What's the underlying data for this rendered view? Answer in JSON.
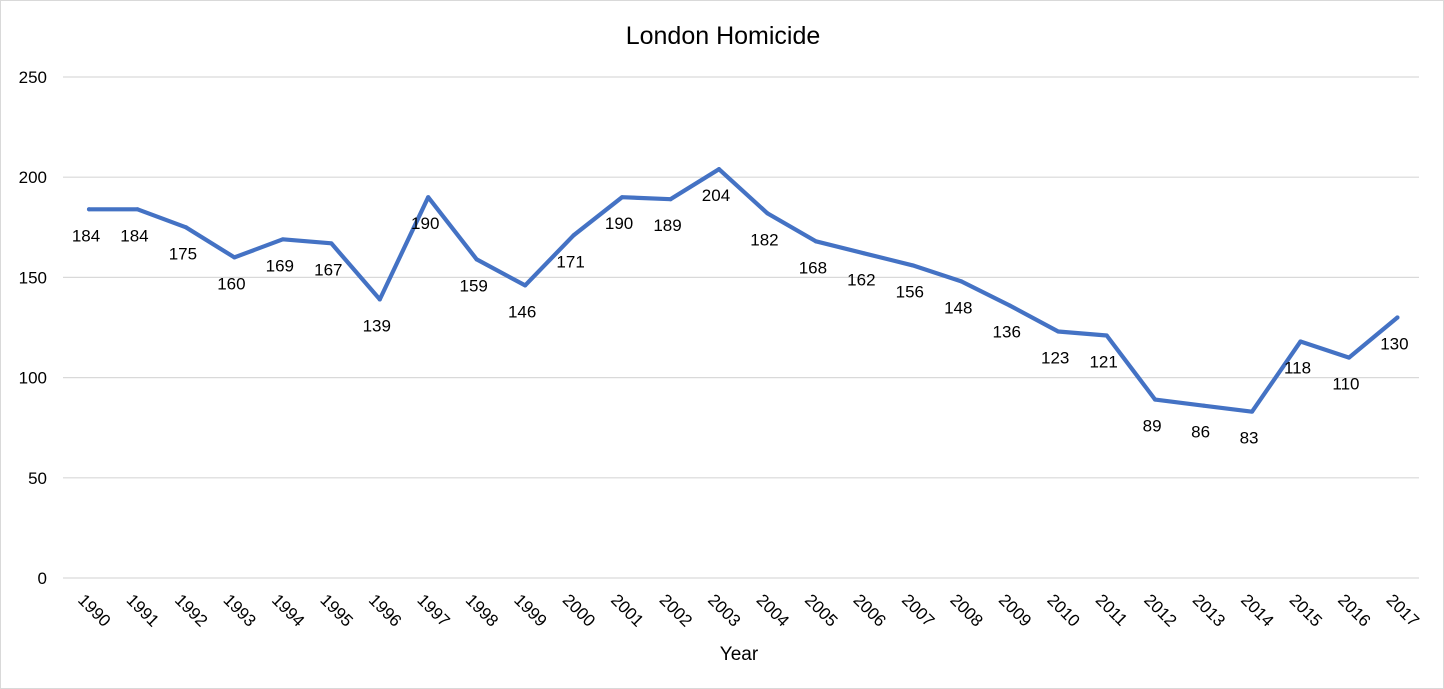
{
  "chart_data": {
    "type": "line",
    "title": "London Homicide",
    "xlabel": "Year",
    "ylabel": "",
    "ylim": [
      0,
      250
    ],
    "yticks": [
      0,
      50,
      100,
      150,
      200,
      250
    ],
    "grid": true,
    "legend": "none",
    "line_color": "#4472C4",
    "grid_color": "#d9d9d9",
    "categories": [
      "1990",
      "1991",
      "1992",
      "1993",
      "1994",
      "1995",
      "1996",
      "1997",
      "1998",
      "1999",
      "2000",
      "2001",
      "2002",
      "2003",
      "2004",
      "2005",
      "2006",
      "2007",
      "2008",
      "2009",
      "2010",
      "2011",
      "2012",
      "2013",
      "2014",
      "2015",
      "2016",
      "2017"
    ],
    "series": [
      {
        "values": [
          184,
          184,
          175,
          160,
          169,
          167,
          139,
          190,
          159,
          146,
          171,
          190,
          189,
          204,
          182,
          168,
          162,
          156,
          148,
          136,
          123,
          121,
          89,
          86,
          83,
          118,
          110,
          130
        ],
        "data_labels": true
      }
    ]
  }
}
